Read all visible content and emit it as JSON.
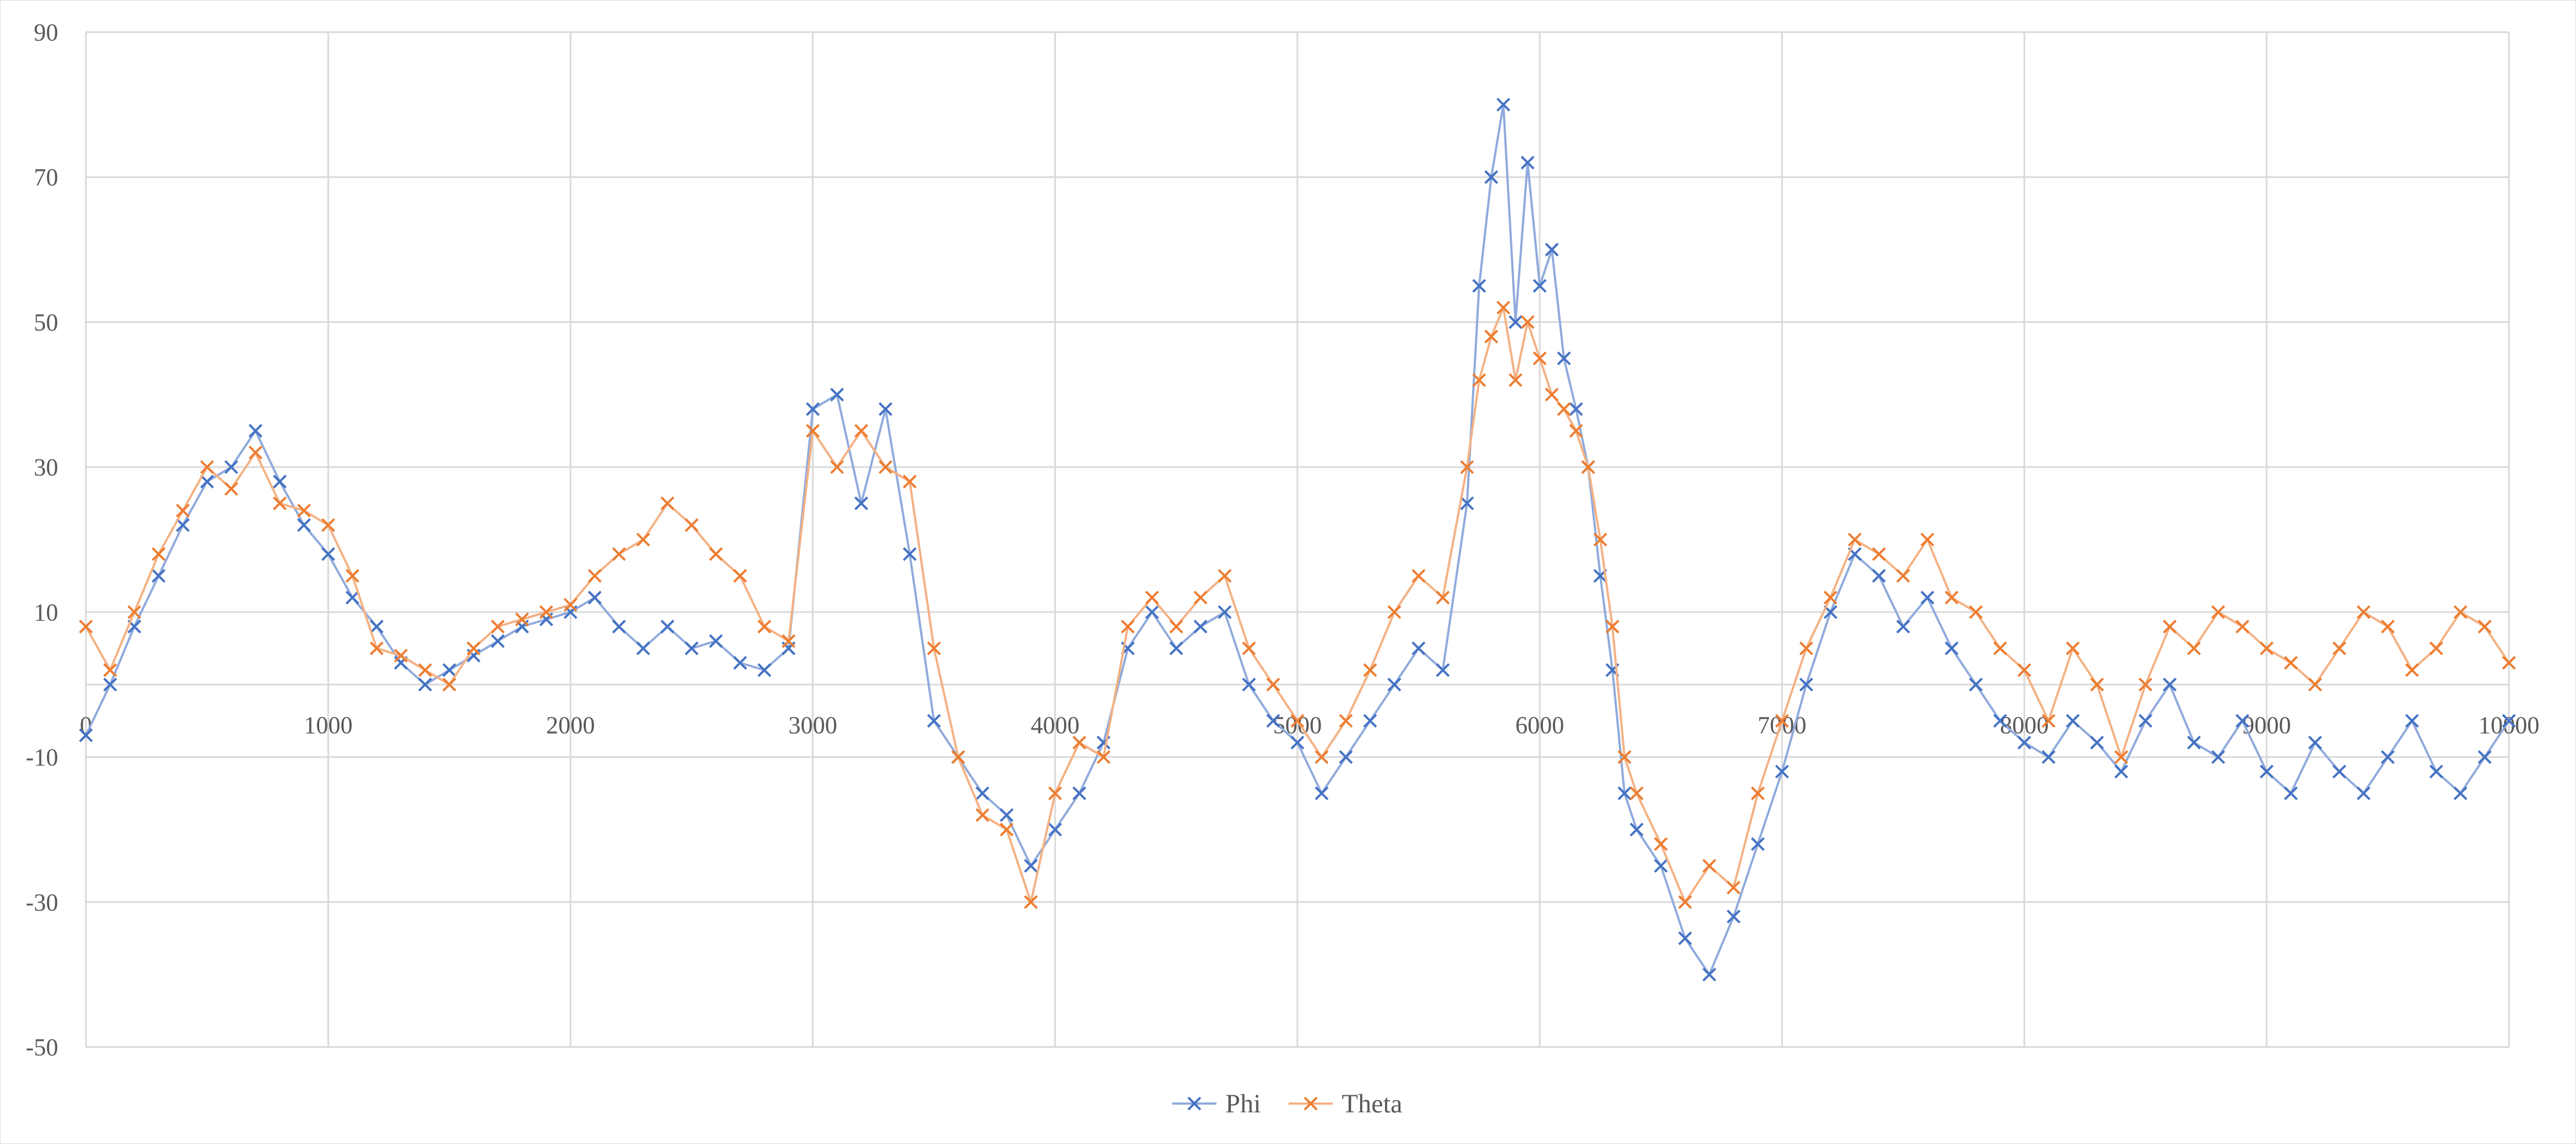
{
  "chart_data": {
    "type": "line",
    "title": "",
    "xlabel": "",
    "ylabel": "",
    "xlim": [
      0,
      10000
    ],
    "ylim": [
      -50,
      90
    ],
    "x_ticks": [
      0,
      1000,
      2000,
      3000,
      4000,
      5000,
      6000,
      7000,
      8000,
      9000,
      10000
    ],
    "y_ticks": [
      -50,
      -30,
      -10,
      10,
      30,
      50,
      70,
      90
    ],
    "x_tick_labels": [
      "0",
      "1000",
      "2000",
      "3000",
      "4000",
      "5000",
      "6000",
      "7000",
      "8000",
      "9000",
      "10000"
    ],
    "y_tick_labels": [
      "-50",
      "-30",
      "-10",
      "10",
      "30",
      "50",
      "70",
      "90"
    ],
    "grid": true,
    "marker": "x",
    "legend_position": "bottom",
    "series": [
      {
        "name": "Phi",
        "color": "#4472C4",
        "line_color": "#8FAADC",
        "x": [
          0,
          100,
          200,
          300,
          400,
          500,
          600,
          700,
          800,
          900,
          1000,
          1100,
          1200,
          1300,
          1400,
          1500,
          1600,
          1700,
          1800,
          1900,
          2000,
          2100,
          2200,
          2300,
          2400,
          2500,
          2600,
          2700,
          2800,
          2900,
          3000,
          3100,
          3200,
          3300,
          3400,
          3500,
          3600,
          3700,
          3800,
          3900,
          4000,
          4100,
          4200,
          4300,
          4400,
          4500,
          4600,
          4700,
          4800,
          4900,
          5000,
          5100,
          5200,
          5300,
          5400,
          5500,
          5600,
          5700,
          5750,
          5800,
          5850,
          5900,
          5950,
          6000,
          6050,
          6100,
          6150,
          6200,
          6250,
          6300,
          6350,
          6400,
          6500,
          6600,
          6700,
          6800,
          6900,
          7000,
          7100,
          7200,
          7300,
          7400,
          7500,
          7600,
          7700,
          7800,
          7900,
          8000,
          8100,
          8200,
          8300,
          8400,
          8500,
          8600,
          8700,
          8800,
          8900,
          9000,
          9100,
          9200,
          9300,
          9400,
          9500,
          9600,
          9700,
          9800,
          9900,
          10000
        ],
        "y": [
          -7,
          0,
          8,
          15,
          22,
          28,
          30,
          35,
          28,
          22,
          18,
          12,
          8,
          3,
          0,
          2,
          4,
          6,
          8,
          9,
          10,
          12,
          8,
          5,
          8,
          5,
          6,
          3,
          2,
          5,
          38,
          40,
          25,
          38,
          18,
          -5,
          -10,
          -15,
          -18,
          -25,
          -20,
          -15,
          -8,
          5,
          10,
          5,
          8,
          10,
          0,
          -5,
          -8,
          -15,
          -10,
          -5,
          0,
          5,
          2,
          25,
          55,
          70,
          80,
          50,
          72,
          55,
          60,
          45,
          38,
          30,
          15,
          2,
          -15,
          -20,
          -25,
          -35,
          -40,
          -32,
          -22,
          -12,
          0,
          10,
          18,
          15,
          8,
          12,
          5,
          0,
          -5,
          -8,
          -10,
          -5,
          -8,
          -12,
          -5,
          0,
          -8,
          -10,
          -5,
          -12,
          -15,
          -8,
          -12,
          -15,
          -10,
          -5,
          -12,
          -15,
          -10,
          -5
        ]
      },
      {
        "name": "Theta",
        "color": "#ED7D31",
        "line_color": "#F4B183",
        "x": [
          0,
          100,
          200,
          300,
          400,
          500,
          600,
          700,
          800,
          900,
          1000,
          1100,
          1200,
          1300,
          1400,
          1500,
          1600,
          1700,
          1800,
          1900,
          2000,
          2100,
          2200,
          2300,
          2400,
          2500,
          2600,
          2700,
          2800,
          2900,
          3000,
          3100,
          3200,
          3300,
          3400,
          3500,
          3600,
          3700,
          3800,
          3900,
          4000,
          4100,
          4200,
          4300,
          4400,
          4500,
          4600,
          4700,
          4800,
          4900,
          5000,
          5100,
          5200,
          5300,
          5400,
          5500,
          5600,
          5700,
          5750,
          5800,
          5850,
          5900,
          5950,
          6000,
          6050,
          6100,
          6150,
          6200,
          6250,
          6300,
          6350,
          6400,
          6500,
          6600,
          6700,
          6800,
          6900,
          7000,
          7100,
          7200,
          7300,
          7400,
          7500,
          7600,
          7700,
          7800,
          7900,
          8000,
          8100,
          8200,
          8300,
          8400,
          8500,
          8600,
          8700,
          8800,
          8900,
          9000,
          9100,
          9200,
          9300,
          9400,
          9500,
          9600,
          9700,
          9800,
          9900,
          10000
        ],
        "y": [
          8,
          2,
          10,
          18,
          24,
          30,
          27,
          32,
          25,
          24,
          22,
          15,
          5,
          4,
          2,
          0,
          5,
          8,
          9,
          10,
          11,
          15,
          18,
          20,
          25,
          22,
          18,
          15,
          8,
          6,
          35,
          30,
          35,
          30,
          28,
          5,
          -10,
          -18,
          -20,
          -30,
          -15,
          -8,
          -10,
          8,
          12,
          8,
          12,
          15,
          5,
          0,
          -5,
          -10,
          -5,
          2,
          10,
          15,
          12,
          30,
          42,
          48,
          52,
          42,
          50,
          45,
          40,
          38,
          35,
          30,
          20,
          8,
          -10,
          -15,
          -22,
          -30,
          -25,
          -28,
          -15,
          -5,
          5,
          12,
          20,
          18,
          15,
          20,
          12,
          10,
          5,
          2,
          -5,
          5,
          0,
          -10,
          0,
          8,
          5,
          10,
          8,
          5,
          3,
          0,
          5,
          10,
          8,
          2,
          5,
          10,
          8,
          3
        ]
      }
    ]
  }
}
